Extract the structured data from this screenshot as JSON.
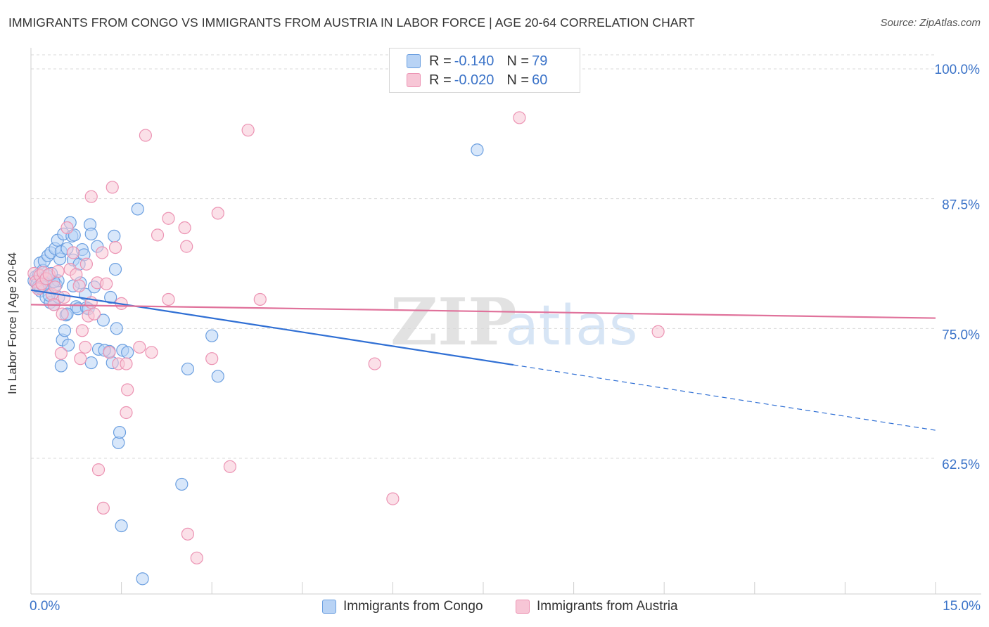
{
  "title": "IMMIGRANTS FROM CONGO VS IMMIGRANTS FROM AUSTRIA IN LABOR FORCE | AGE 20-64 CORRELATION CHART",
  "source": "Source: ZipAtlas.com",
  "watermark": {
    "zip": "ZIP",
    "atlas": "atlas"
  },
  "colors": {
    "blue_fill": "#b8d3f5",
    "blue_stroke": "#6b9fe0",
    "blue_line": "#2f6fd4",
    "pink_fill": "#f7c6d6",
    "pink_stroke": "#ec93b3",
    "pink_line": "#e0729b",
    "grid": "#d9d9d9",
    "tick_label": "#3b73c8"
  },
  "legend": [
    {
      "r_key": "R =",
      "r_value": "-0.140",
      "n_key": "N =",
      "n_value": "79"
    },
    {
      "r_key": "R =",
      "r_value": "-0.020",
      "n_key": "N =",
      "n_value": "60"
    }
  ],
  "chart_data": {
    "type": "scatter",
    "title": "IMMIGRANTS FROM CONGO VS IMMIGRANTS FROM AUSTRIA IN LABOR FORCE | AGE 20-64 CORRELATION CHART",
    "xlabel": "",
    "ylabel": "In Labor Force | Age 20-64",
    "xlim": [
      0,
      15
    ],
    "ylim": [
      49,
      101
    ],
    "x_tick_labels": [
      "0.0%",
      "15.0%"
    ],
    "y_ticks": [
      62.5,
      75,
      87.5,
      100
    ],
    "y_tick_labels": [
      "62.5%",
      "75.0%",
      "87.5%",
      "100.0%"
    ],
    "grid": true,
    "series": [
      {
        "name": "Immigrants from Congo",
        "R": -0.14,
        "N": 79,
        "trend": {
          "x0": 0.0,
          "y0": 78.7,
          "x1": 8.0,
          "y1": 71.5,
          "dashed_to_x": 15.0,
          "dashed_to_y": 65.2
        },
        "points": [
          [
            0.05,
            79.6
          ],
          [
            0.08,
            80.0
          ],
          [
            0.1,
            79.3
          ],
          [
            0.12,
            79.0
          ],
          [
            0.13,
            80.2
          ],
          [
            0.15,
            81.3
          ],
          [
            0.16,
            78.6
          ],
          [
            0.18,
            79.8
          ],
          [
            0.2,
            80.6
          ],
          [
            0.22,
            81.5
          ],
          [
            0.24,
            79.4
          ],
          [
            0.25,
            78.0
          ],
          [
            0.28,
            82.0
          ],
          [
            0.3,
            79.7
          ],
          [
            0.32,
            77.5
          ],
          [
            0.33,
            82.3
          ],
          [
            0.35,
            79.5
          ],
          [
            0.38,
            77.3
          ],
          [
            0.4,
            82.7
          ],
          [
            0.42,
            79.2
          ],
          [
            0.44,
            83.5
          ],
          [
            0.46,
            78.0
          ],
          [
            0.48,
            81.7
          ],
          [
            0.5,
            82.4
          ],
          [
            0.52,
            73.9
          ],
          [
            0.54,
            84.1
          ],
          [
            0.56,
            74.8
          ],
          [
            0.58,
            76.3
          ],
          [
            0.6,
            82.7
          ],
          [
            0.62,
            73.4
          ],
          [
            0.65,
            85.2
          ],
          [
            0.68,
            83.9
          ],
          [
            0.7,
            81.6
          ],
          [
            0.72,
            84.0
          ],
          [
            0.75,
            77.1
          ],
          [
            0.78,
            76.9
          ],
          [
            0.8,
            81.2
          ],
          [
            0.82,
            79.4
          ],
          [
            0.85,
            82.6
          ],
          [
            0.88,
            82.1
          ],
          [
            0.9,
            78.3
          ],
          [
            0.92,
            77.0
          ],
          [
            0.95,
            76.9
          ],
          [
            0.98,
            85.0
          ],
          [
            1.0,
            84.1
          ],
          [
            1.0,
            71.7
          ],
          [
            1.05,
            79.0
          ],
          [
            1.1,
            82.9
          ],
          [
            1.12,
            73.0
          ],
          [
            1.2,
            75.8
          ],
          [
            1.3,
            72.8
          ],
          [
            1.32,
            78.0
          ],
          [
            1.35,
            71.7
          ],
          [
            1.38,
            83.9
          ],
          [
            1.4,
            80.7
          ],
          [
            1.42,
            75.0
          ],
          [
            1.45,
            64.0
          ],
          [
            1.47,
            65.0
          ],
          [
            1.5,
            56.0
          ],
          [
            1.52,
            72.9
          ],
          [
            1.6,
            72.7
          ],
          [
            1.77,
            86.5
          ],
          [
            1.85,
            50.9
          ],
          [
            0.5,
            71.4
          ],
          [
            0.6,
            76.4
          ],
          [
            1.22,
            72.9
          ],
          [
            2.5,
            60.0
          ],
          [
            2.6,
            71.1
          ],
          [
            3.0,
            74.3
          ],
          [
            3.1,
            70.4
          ],
          [
            7.4,
            92.2
          ],
          [
            0.15,
            78.9
          ],
          [
            0.2,
            79.1
          ],
          [
            0.3,
            78.2
          ],
          [
            0.45,
            79.6
          ],
          [
            0.38,
            79.5
          ],
          [
            0.27,
            80.1
          ],
          [
            0.34,
            80.3
          ],
          [
            0.7,
            79.1
          ]
        ]
      },
      {
        "name": "Immigrants from Austria",
        "R": -0.02,
        "N": 60,
        "trend": {
          "x0": 0.0,
          "y0": 77.3,
          "x1": 15.0,
          "y1": 76.0
        },
        "points": [
          [
            0.05,
            80.3
          ],
          [
            0.08,
            79.5
          ],
          [
            0.12,
            78.8
          ],
          [
            0.15,
            80.1
          ],
          [
            0.18,
            79.3
          ],
          [
            0.2,
            80.4
          ],
          [
            0.25,
            79.8
          ],
          [
            0.3,
            80.2
          ],
          [
            0.35,
            78.3
          ],
          [
            0.38,
            77.3
          ],
          [
            0.4,
            79.0
          ],
          [
            0.45,
            80.5
          ],
          [
            0.5,
            72.6
          ],
          [
            0.52,
            76.4
          ],
          [
            0.55,
            78.0
          ],
          [
            0.6,
            84.7
          ],
          [
            0.65,
            80.7
          ],
          [
            0.7,
            82.3
          ],
          [
            0.75,
            80.2
          ],
          [
            0.8,
            79.1
          ],
          [
            0.82,
            72.1
          ],
          [
            0.85,
            74.8
          ],
          [
            0.9,
            73.2
          ],
          [
            0.92,
            81.2
          ],
          [
            0.95,
            76.2
          ],
          [
            1.0,
            77.5
          ],
          [
            1.0,
            87.7
          ],
          [
            1.05,
            76.4
          ],
          [
            1.1,
            79.4
          ],
          [
            1.12,
            61.4
          ],
          [
            1.18,
            82.3
          ],
          [
            1.2,
            57.7
          ],
          [
            1.25,
            79.3
          ],
          [
            1.3,
            72.7
          ],
          [
            1.35,
            88.6
          ],
          [
            1.4,
            82.8
          ],
          [
            1.45,
            71.6
          ],
          [
            1.5,
            77.4
          ],
          [
            1.58,
            71.6
          ],
          [
            1.6,
            69.1
          ],
          [
            1.58,
            66.9
          ],
          [
            1.8,
            73.2
          ],
          [
            1.9,
            93.6
          ],
          [
            2.0,
            72.7
          ],
          [
            2.1,
            84.0
          ],
          [
            2.28,
            85.6
          ],
          [
            2.28,
            77.8
          ],
          [
            2.55,
            84.7
          ],
          [
            2.58,
            82.9
          ],
          [
            2.6,
            55.2
          ],
          [
            2.75,
            52.9
          ],
          [
            3.0,
            72.1
          ],
          [
            3.1,
            86.1
          ],
          [
            3.3,
            61.7
          ],
          [
            3.6,
            94.1
          ],
          [
            3.8,
            77.8
          ],
          [
            5.7,
            71.6
          ],
          [
            6.0,
            58.6
          ],
          [
            8.1,
            95.3
          ],
          [
            10.4,
            74.7
          ]
        ]
      }
    ]
  },
  "bottom_legend": [
    "Immigrants from Congo",
    "Immigrants from Austria"
  ]
}
